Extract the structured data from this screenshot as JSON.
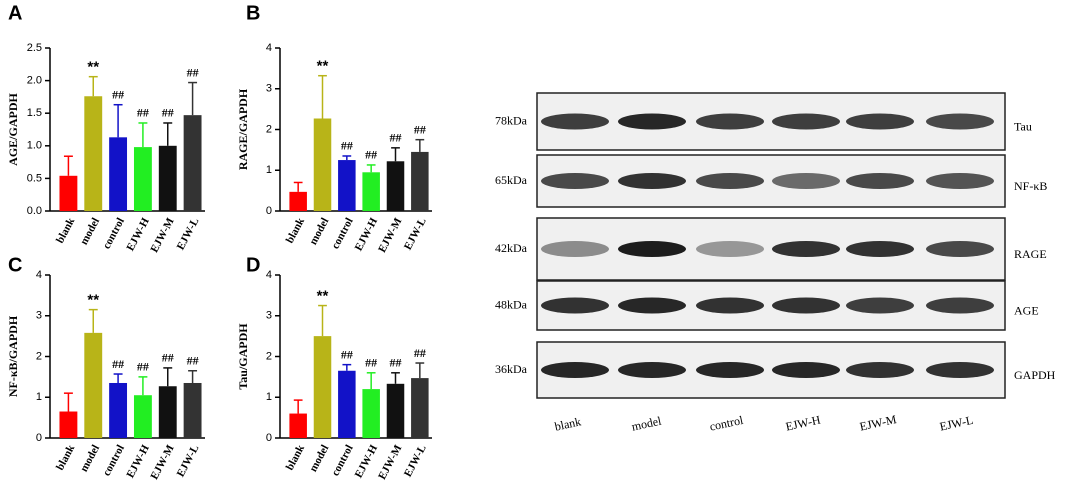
{
  "chart_data": [
    {
      "type": "bar",
      "panel": "A",
      "y_label": "AGE/GAPDH",
      "categories": [
        "blank",
        "model",
        "control",
        "EJW-H",
        "EJW-M",
        "EJW-L"
      ],
      "values": [
        0.54,
        1.76,
        1.13,
        0.98,
        1.0,
        1.47
      ],
      "errors": [
        0.3,
        0.3,
        0.5,
        0.37,
        0.35,
        0.5
      ],
      "colors": [
        "#ff0000",
        "#b8b418",
        "#1212c8",
        "#22ee22",
        "#111111",
        "#333333"
      ],
      "annotations": [
        null,
        "**",
        "##",
        "##",
        "##",
        "##"
      ],
      "ylim": [
        0,
        2.5
      ],
      "yticks": [
        {
          "value": 0,
          "label": "0.0"
        },
        0.5,
        {
          "value": 1,
          "label": "1.0"
        },
        1.5,
        {
          "value": 2,
          "label": "2.0"
        },
        2.5
      ]
    },
    {
      "type": "bar",
      "panel": "B",
      "y_label": "RAGE/GAPDH",
      "categories": [
        "blank",
        "model",
        "control",
        "EJW-H",
        "EJW-M",
        "EJW-L"
      ],
      "values": [
        0.47,
        2.27,
        1.25,
        0.95,
        1.22,
        1.45
      ],
      "errors": [
        0.23,
        1.05,
        0.1,
        0.18,
        0.33,
        0.3
      ],
      "colors": [
        "#ff0000",
        "#b8b418",
        "#1212c8",
        "#22ee22",
        "#111111",
        "#333333"
      ],
      "annotations": [
        null,
        "**",
        "##",
        "##",
        "##",
        "##"
      ],
      "ylim": [
        0,
        4
      ],
      "yticks": [
        0,
        1,
        2,
        3,
        4
      ]
    },
    {
      "type": "bar",
      "panel": "C",
      "y_label": "NF-κB/GAPDH",
      "categories": [
        "blank",
        "model",
        "control",
        "EJW-H",
        "EJW-M",
        "EJW-L"
      ],
      "values": [
        0.65,
        2.58,
        1.35,
        1.05,
        1.27,
        1.35
      ],
      "errors": [
        0.45,
        0.57,
        0.22,
        0.45,
        0.45,
        0.3
      ],
      "colors": [
        "#ff0000",
        "#b8b418",
        "#1212c8",
        "#22ee22",
        "#111111",
        "#333333"
      ],
      "annotations": [
        null,
        "**",
        "##",
        "##",
        "##",
        "##"
      ],
      "ylim": [
        0,
        4
      ],
      "yticks": [
        0,
        1,
        2,
        3,
        4
      ]
    },
    {
      "type": "bar",
      "panel": "D",
      "y_label": "Tau/GAPDH",
      "categories": [
        "blank",
        "model",
        "control",
        "EJW-H",
        "EJW-M",
        "EJW-L"
      ],
      "values": [
        0.6,
        2.5,
        1.65,
        1.2,
        1.33,
        1.47
      ],
      "errors": [
        0.33,
        0.75,
        0.15,
        0.4,
        0.27,
        0.37
      ],
      "colors": [
        "#ff0000",
        "#b8b418",
        "#1212c8",
        "#22ee22",
        "#111111",
        "#333333"
      ],
      "annotations": [
        null,
        "**",
        "##",
        "##",
        "##",
        "##"
      ],
      "ylim": [
        0,
        4
      ],
      "yticks": [
        0,
        1,
        2,
        3,
        4
      ]
    }
  ],
  "blot": {
    "lanes": [
      "blank",
      "model",
      "control",
      "EJW-H",
      "EJW-M",
      "EJW-L"
    ],
    "rows": [
      {
        "size": "78kDa",
        "protein": "Tau"
      },
      {
        "size": "65kDa",
        "protein": "NF-κB"
      },
      {
        "size": "42kDa",
        "protein": "RAGE"
      },
      {
        "size": "48kDa",
        "protein": "AGE"
      },
      {
        "size": "36kDa",
        "protein": "GAPDH"
      }
    ]
  }
}
